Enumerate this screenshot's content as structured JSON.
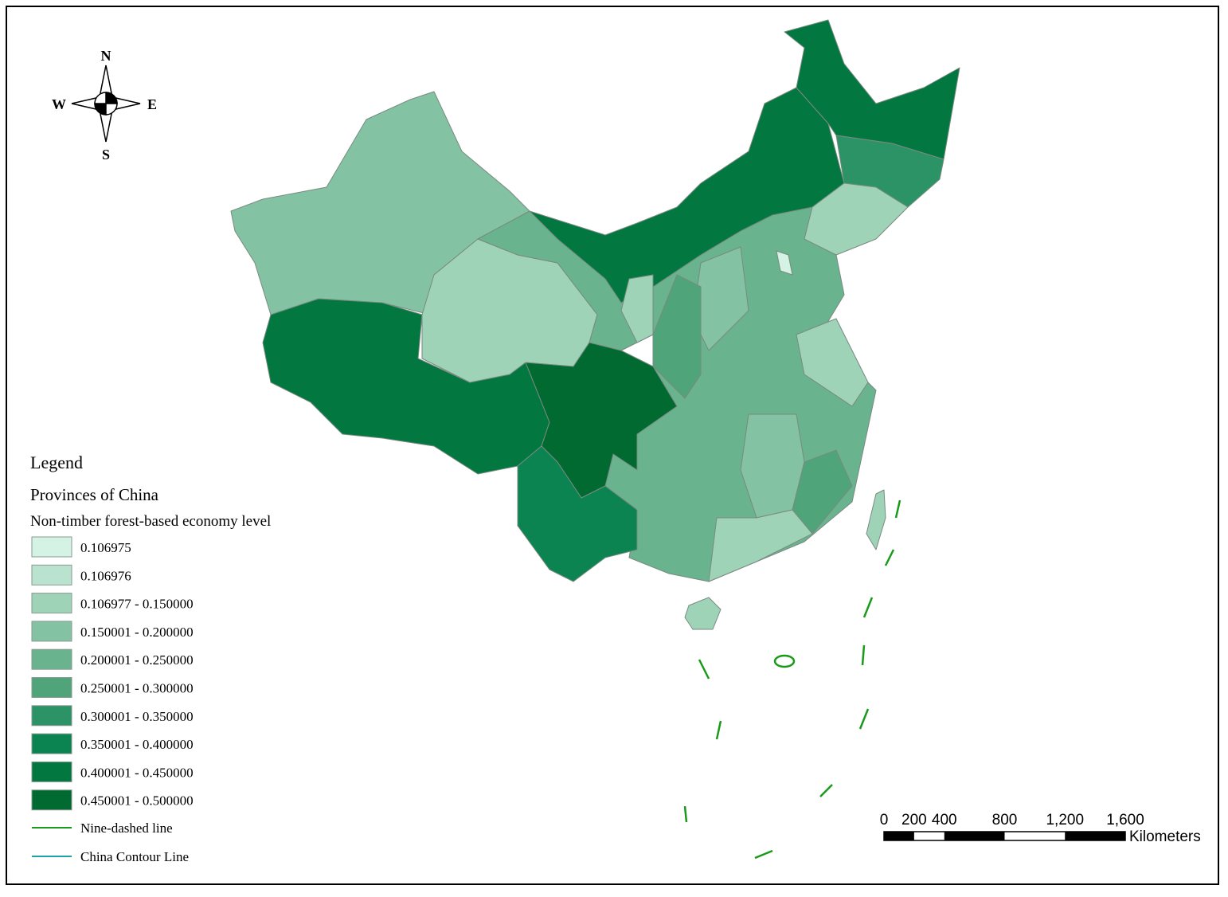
{
  "compass": {
    "north": "N",
    "south": "S",
    "east": "E",
    "west": "W"
  },
  "legend": {
    "title": "Legend",
    "layer": "Provinces of China",
    "field": "Non-timber forest-based economy level",
    "classes": [
      {
        "label": "0.106975",
        "color": "#d5f3e5"
      },
      {
        "label": "0.106976",
        "color": "#b9e2cf"
      },
      {
        "label": "0.106977 - 0.150000",
        "color": "#9ed3b8"
      },
      {
        "label": "0.150001 - 0.200000",
        "color": "#83c3a3"
      },
      {
        "label": "0.200001 - 0.250000",
        "color": "#69b38e"
      },
      {
        "label": "0.250001 - 0.300000",
        "color": "#4fa47a"
      },
      {
        "label": "0.300001 - 0.350000",
        "color": "#2b9366"
      },
      {
        "label": "0.350001 - 0.400000",
        "color": "#0b8452"
      },
      {
        "label": "0.400001 - 0.450000",
        "color": "#037740"
      },
      {
        "label": "0.450001 - 0.500000",
        "color": "#016a31"
      }
    ],
    "lines": [
      {
        "label": "Nine-dashed line",
        "color": "#1a9a1a"
      },
      {
        "label": "China Contour Line",
        "color": "#1aa3a3"
      }
    ]
  },
  "scale_bar": {
    "unit": "Kilometers",
    "ticks": [
      0,
      200,
      400,
      800,
      {
        "value": 1200,
        "label": "1,200"
      },
      {
        "value": 1600,
        "label": "1,600"
      }
    ]
  }
}
